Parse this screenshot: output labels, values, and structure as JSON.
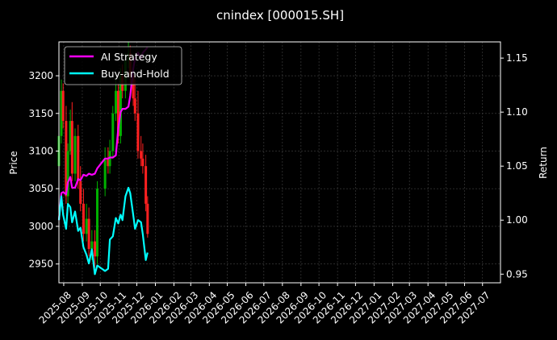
{
  "chart_data": {
    "type": "line",
    "title": "cnindex [000015.SH]",
    "ylabel_left": "Price",
    "ylabel_right": "Return",
    "xlabel": "",
    "x_ticks": [
      "2025-08",
      "2025-09",
      "2025-10",
      "2025-11",
      "2025-12",
      "2026-01",
      "2026-02",
      "2026-03",
      "2026-04",
      "2026-05",
      "2026-06",
      "2026-07",
      "2026-08",
      "2026-09",
      "2026-10",
      "2026-11",
      "2026-12",
      "2027-01",
      "2027-02",
      "2027-03",
      "2027-04",
      "2027-05",
      "2027-06",
      "2027-07"
    ],
    "x_range": [
      "2025-07-24",
      "2027-07-31"
    ],
    "left_axis": {
      "ylim": [
        2925,
        3245
      ],
      "ticks": [
        2950,
        3000,
        3050,
        3100,
        3150,
        3200
      ]
    },
    "right_axis": {
      "ylim": [
        0.942,
        1.165
      ],
      "ticks": [
        "0.95",
        "1.00",
        "1.05",
        "1.10",
        "1.15"
      ]
    },
    "grid": true,
    "legend": {
      "position": "top-left",
      "entries": [
        "AI Strategy",
        "Buy-and-Hold"
      ]
    },
    "colors": {
      "ai": "#ff00ff",
      "bh": "#00ffff",
      "up": "#00b000",
      "down": "#ff2020",
      "grid": "#444444"
    },
    "series": [
      {
        "name": "AI Strategy",
        "axis": "right",
        "x": [
          "2025-07-24",
          "2025-07-28",
          "2025-07-31",
          "2025-08-05",
          "2025-08-08",
          "2025-08-12",
          "2025-08-15",
          "2025-08-20",
          "2025-08-25",
          "2025-08-29",
          "2025-09-03",
          "2025-09-08",
          "2025-09-12",
          "2025-09-17",
          "2025-09-22",
          "2025-09-26",
          "2025-10-09",
          "2025-10-14",
          "2025-10-17",
          "2025-10-22",
          "2025-10-27",
          "2025-10-31",
          "2025-11-04",
          "2025-11-07",
          "2025-11-12",
          "2025-11-17",
          "2025-11-20",
          "2025-11-25",
          "2025-11-28",
          "2025-12-03",
          "2025-12-08",
          "2025-12-11",
          "2025-12-16",
          "2025-12-19"
        ],
        "values": [
          1.0,
          1.025,
          1.026,
          1.024,
          1.035,
          1.04,
          1.03,
          1.03,
          1.038,
          1.037,
          1.042,
          1.041,
          1.043,
          1.042,
          1.043,
          1.048,
          1.057,
          1.057,
          1.058,
          1.058,
          1.06,
          1.085,
          1.1,
          1.103,
          1.103,
          1.105,
          1.115,
          1.14,
          1.15,
          1.155,
          1.15,
          1.155,
          1.158,
          1.16
        ]
      },
      {
        "name": "Buy-and-Hold",
        "axis": "right",
        "x": [
          "2025-07-24",
          "2025-07-28",
          "2025-07-31",
          "2025-08-05",
          "2025-08-08",
          "2025-08-12",
          "2025-08-15",
          "2025-08-20",
          "2025-08-25",
          "2025-08-29",
          "2025-09-03",
          "2025-09-08",
          "2025-09-12",
          "2025-09-17",
          "2025-09-22",
          "2025-09-26",
          "2025-10-09",
          "2025-10-14",
          "2025-10-17",
          "2025-10-22",
          "2025-10-27",
          "2025-10-31",
          "2025-11-04",
          "2025-11-07",
          "2025-11-12",
          "2025-11-17",
          "2025-11-20",
          "2025-11-25",
          "2025-11-28",
          "2025-12-03",
          "2025-12-08",
          "2025-12-11",
          "2025-12-16",
          "2025-12-19"
        ],
        "values": [
          1.0,
          1.022,
          1.005,
          0.992,
          1.015,
          1.012,
          0.998,
          1.008,
          0.99,
          0.993,
          0.975,
          0.968,
          0.96,
          0.973,
          0.95,
          0.958,
          0.953,
          0.955,
          0.982,
          0.985,
          1.002,
          0.997,
          1.005,
          1.0,
          1.022,
          1.03,
          1.025,
          1.005,
          0.992,
          1.0,
          0.998,
          0.987,
          0.963,
          0.97
        ]
      }
    ],
    "candles": {
      "axis": "left",
      "x": [
        "2025-07-24",
        "2025-07-28",
        "2025-07-31",
        "2025-08-05",
        "2025-08-08",
        "2025-08-12",
        "2025-08-15",
        "2025-08-20",
        "2025-08-25",
        "2025-08-29",
        "2025-09-03",
        "2025-09-08",
        "2025-09-12",
        "2025-09-17",
        "2025-09-22",
        "2025-09-26",
        "2025-10-09",
        "2025-10-14",
        "2025-10-17",
        "2025-10-22",
        "2025-10-27",
        "2025-10-31",
        "2025-11-04",
        "2025-11-07",
        "2025-11-12",
        "2025-11-17",
        "2025-11-20",
        "2025-11-25",
        "2025-11-28",
        "2025-12-03",
        "2025-12-08",
        "2025-12-11",
        "2025-12-16",
        "2025-12-19"
      ],
      "open": [
        3080,
        3120,
        3180,
        3140,
        3040,
        3100,
        3140,
        3070,
        3120,
        3060,
        3030,
        2990,
        3010,
        2970,
        2980,
        2960,
        3050,
        3090,
        3080,
        3100,
        3150,
        3180,
        3120,
        3200,
        3180,
        3220,
        3230,
        3200,
        3170,
        3150,
        3100,
        3090,
        3080,
        3030
      ],
      "close": [
        3120,
        3180,
        3140,
        3040,
        3100,
        3140,
        3070,
        3120,
        3060,
        3030,
        2990,
        3010,
        2970,
        2980,
        2960,
        3050,
        3090,
        3080,
        3100,
        3150,
        3180,
        3120,
        3200,
        3180,
        3220,
        3230,
        3200,
        3170,
        3150,
        3100,
        3090,
        3080,
        3030,
        2990
      ],
      "high": [
        3125,
        3195,
        3190,
        3160,
        3110,
        3155,
        3165,
        3130,
        3135,
        3080,
        3050,
        3030,
        3025,
        2995,
        2995,
        3060,
        3105,
        3105,
        3115,
        3160,
        3195,
        3190,
        3210,
        3215,
        3230,
        3245,
        3240,
        3215,
        3195,
        3180,
        3120,
        3110,
        3095,
        3040
      ],
      "low": [
        3075,
        3110,
        3130,
        3030,
        3030,
        3095,
        3060,
        3060,
        3050,
        3020,
        2980,
        2980,
        2960,
        2955,
        2945,
        2950,
        3040,
        3070,
        3070,
        3090,
        3140,
        3110,
        3110,
        3170,
        3170,
        3210,
        3190,
        3160,
        3140,
        3090,
        3080,
        3070,
        3020,
        2985
      ]
    }
  }
}
